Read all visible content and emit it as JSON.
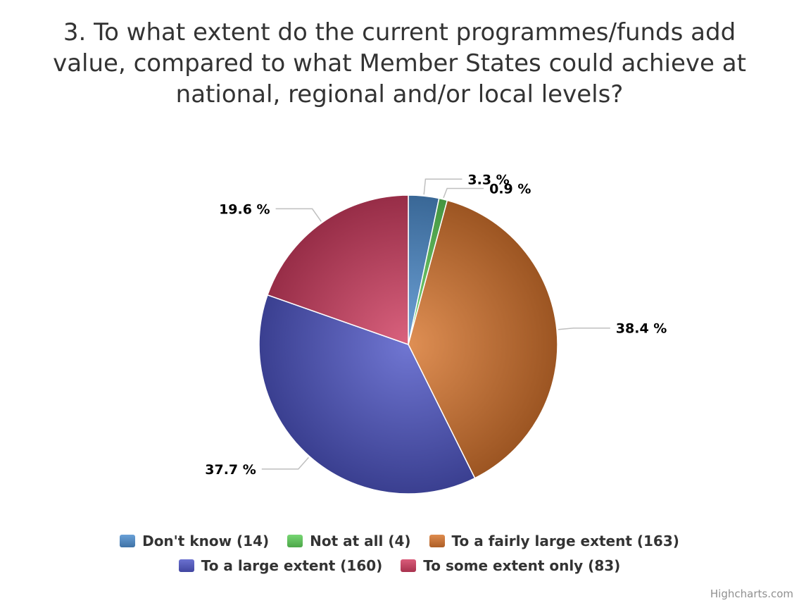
{
  "title_lines": [
    "3. To what extent do the current programmes/funds add",
    "value, compared to what Member States could achieve at",
    "national, regional and/or local levels?"
  ],
  "credits": "Highcharts.com",
  "chart_data": {
    "type": "pie",
    "title": "3. To what extent do the current programmes/funds add value, compared to what Member States could achieve at national, regional and/or local levels?",
    "slices": [
      {
        "name": "Don't know",
        "count": 14,
        "value": 3.3,
        "label": "3.3 %",
        "legend_label": "Don't know (14)",
        "color": "#4f8fd0"
      },
      {
        "name": "Not at all",
        "count": 4,
        "value": 0.9,
        "label": "0.9 %",
        "legend_label": "Not at all (4)",
        "color": "#5fcf5a"
      },
      {
        "name": "To a fairly large extent",
        "count": 163,
        "value": 38.4,
        "label": "38.4 %",
        "legend_label": "To a fairly large extent (163)",
        "color": "#d8762f"
      },
      {
        "name": "To a large extent",
        "count": 160,
        "value": 37.7,
        "label": "37.7 %",
        "legend_label": "To a large extent (160)",
        "color": "#5158c8"
      },
      {
        "name": "To some extent only",
        "count": 83,
        "value": 19.6,
        "label": "19.6 %",
        "legend_label": "To some extent only (83)",
        "color": "#d23f62"
      }
    ],
    "legend_rows": [
      [
        0,
        1,
        2
      ],
      [
        3,
        4
      ]
    ],
    "legend_position": "bottom"
  }
}
